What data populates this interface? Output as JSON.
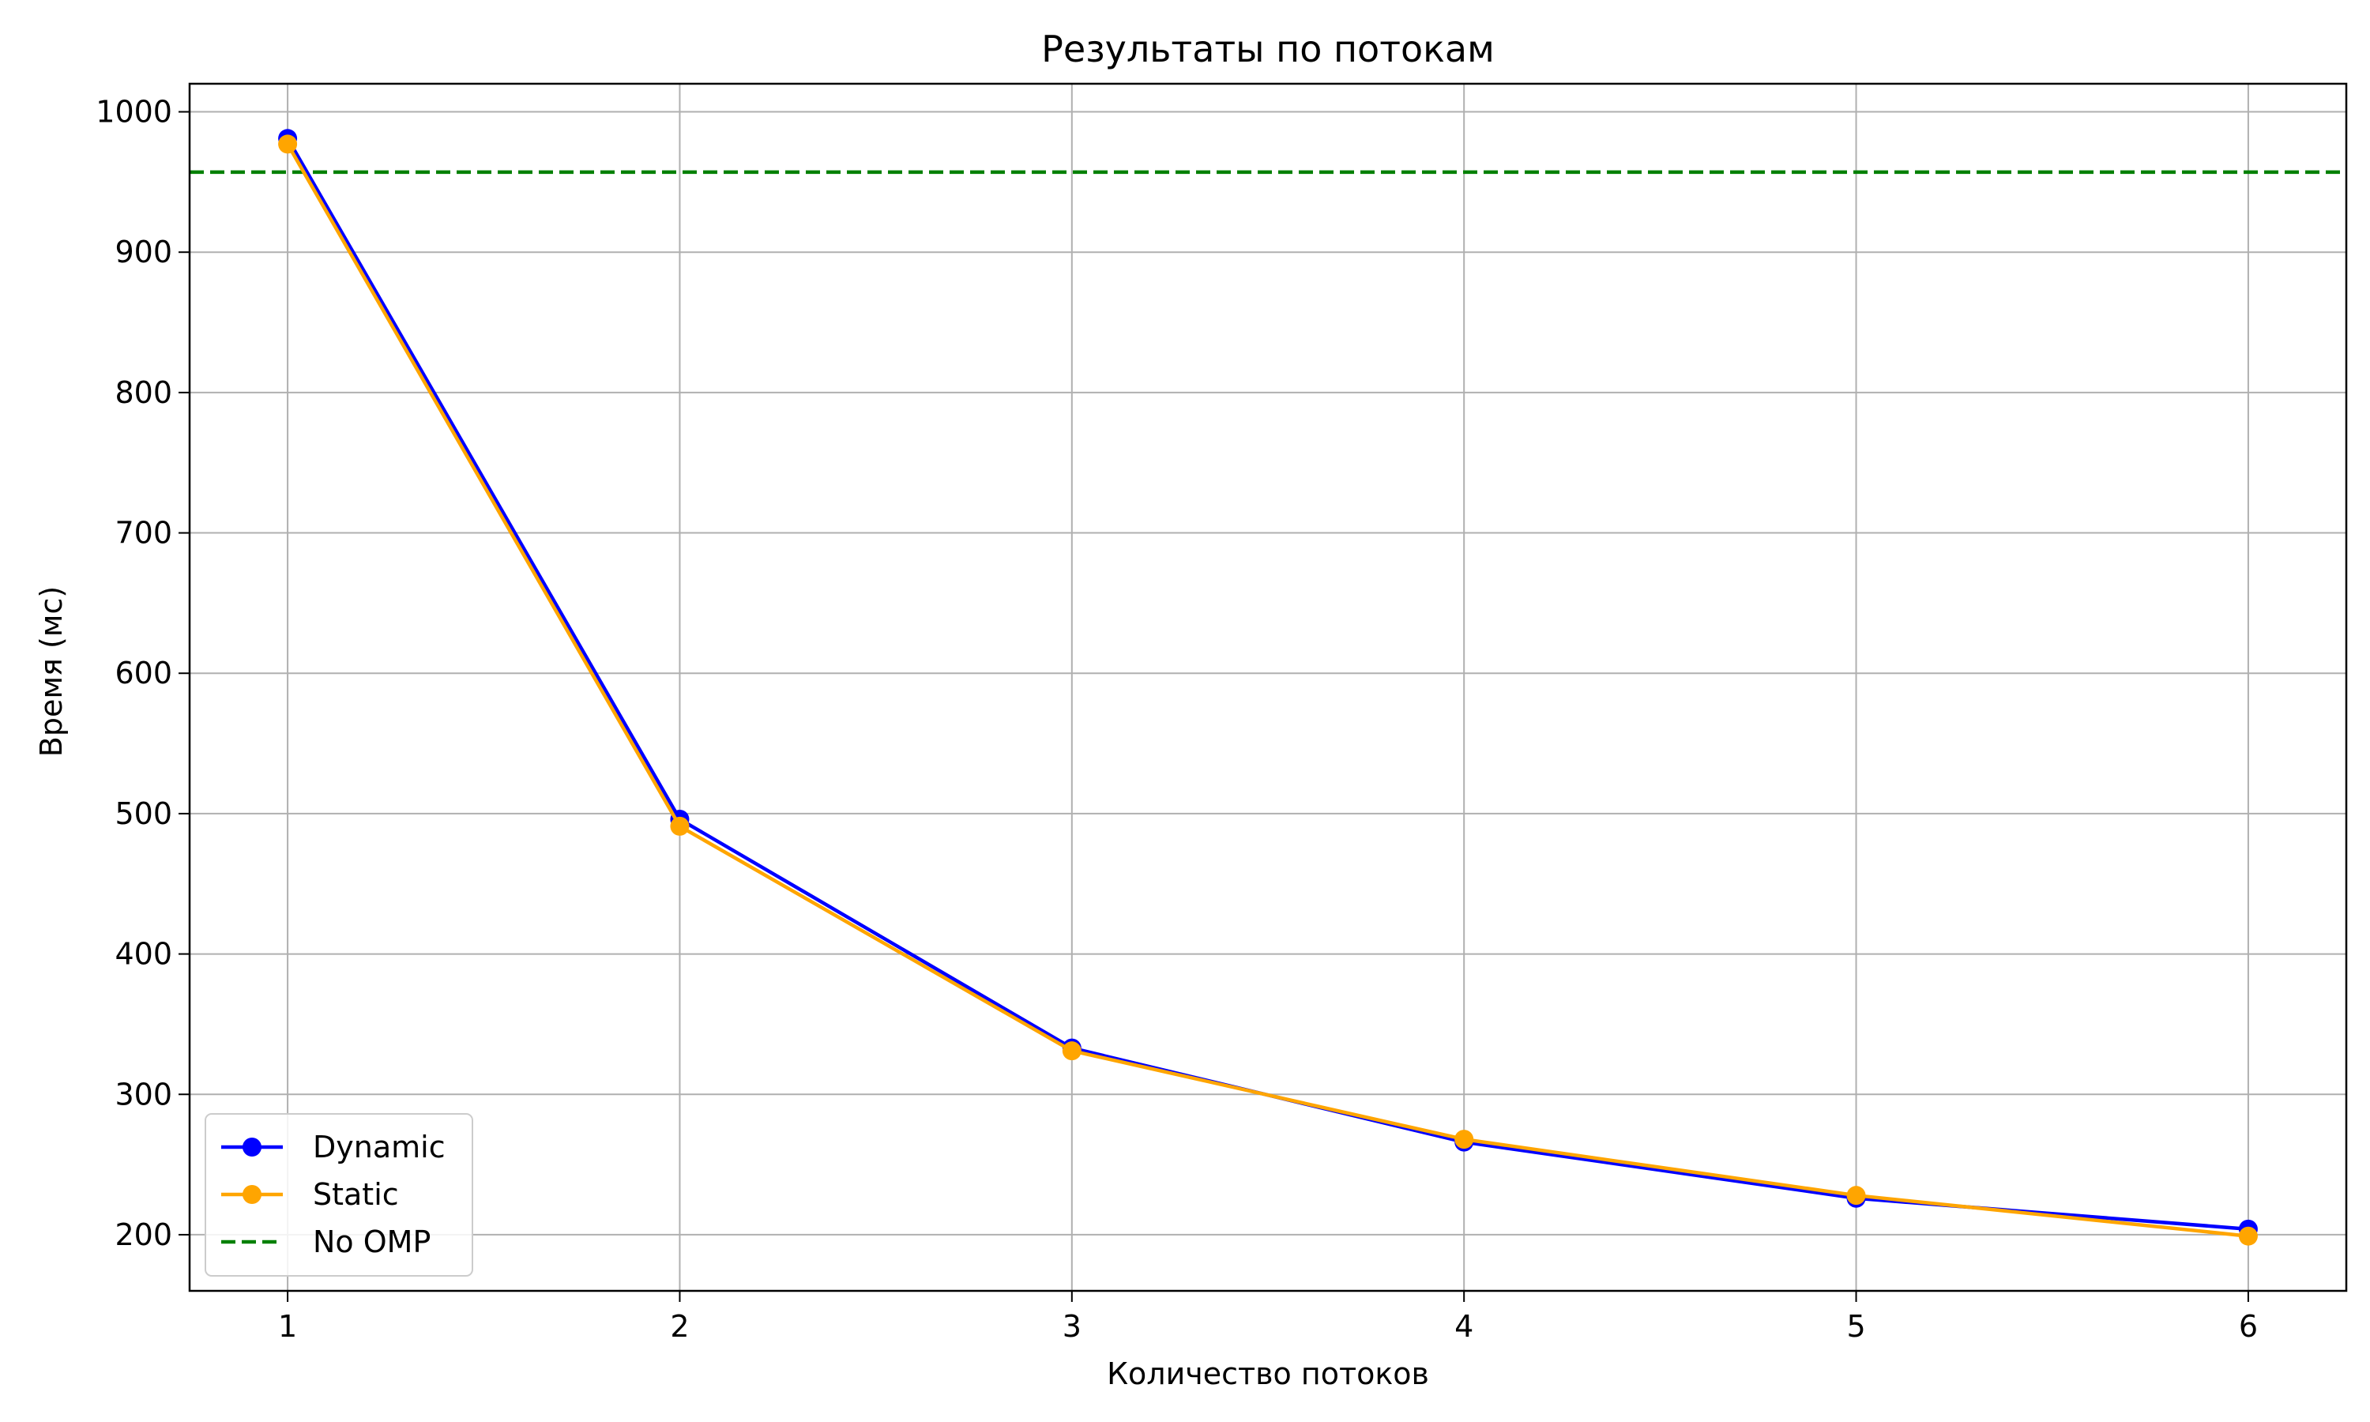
{
  "chart_data": {
    "type": "line",
    "title": "Результаты по потокам",
    "xlabel": "Количество потоков",
    "ylabel": "Время (мс)",
    "x": [
      1,
      2,
      3,
      4,
      5,
      6
    ],
    "xlim": [
      0.75,
      6.25
    ],
    "ylim": [
      160,
      1020
    ],
    "xticks": [
      1,
      2,
      3,
      4,
      5,
      6
    ],
    "yticks": [
      200,
      300,
      400,
      500,
      600,
      700,
      800,
      900,
      1000
    ],
    "grid": true,
    "legend_position": "lower-left",
    "series": [
      {
        "name": "Dynamic",
        "values": [
          981,
          496,
          333,
          266,
          226,
          204
        ],
        "color": "#0000ff",
        "style": "solid",
        "marker": "circle"
      },
      {
        "name": "Static",
        "values": [
          977,
          491,
          331,
          268,
          228,
          199
        ],
        "color": "#ffa500",
        "style": "solid",
        "marker": "circle"
      }
    ],
    "reference_lines": [
      {
        "name": "No OMP",
        "y": 957,
        "color": "#008000",
        "style": "dashed"
      }
    ]
  }
}
